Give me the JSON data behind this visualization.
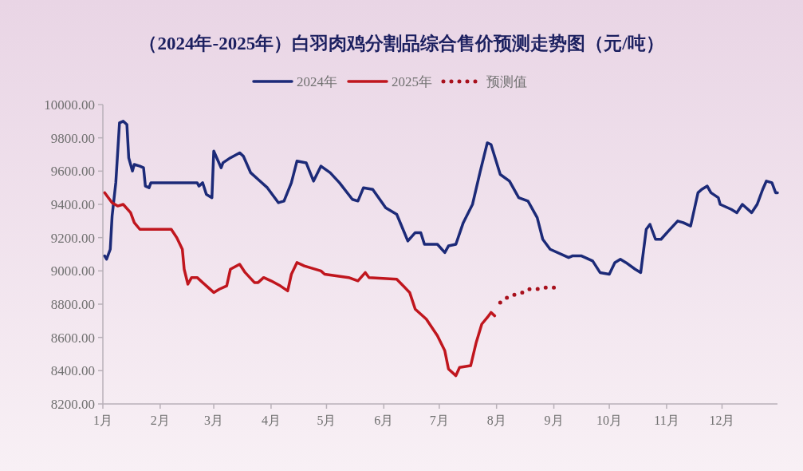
{
  "chart_data": {
    "type": "line",
    "title": "（2024年-2025年）白羽肉鸡分割品综合售价预测走势图（元/吨）",
    "legend": "top",
    "xlim": [
      "--01-01",
      "--12-31"
    ],
    "xticks": [
      {
        "value": "--01-01",
        "label": "1月"
      },
      {
        "value": "--02-01",
        "label": "2月"
      },
      {
        "value": "--03-01",
        "label": "3月"
      },
      {
        "value": "--04-01",
        "label": "4月"
      },
      {
        "value": "--05-01",
        "label": "5月"
      },
      {
        "value": "--06-01",
        "label": "6月"
      },
      {
        "value": "--07-01",
        "label": "7月"
      },
      {
        "value": "--08-01",
        "label": "8月"
      },
      {
        "value": "--09-01",
        "label": "9月"
      },
      {
        "value": "--10-01",
        "label": "10月"
      },
      {
        "value": "--11-01",
        "label": "11月"
      },
      {
        "value": "--12-01",
        "label": "12月"
      }
    ],
    "ylim": [
      8200,
      10000
    ],
    "yticks": [
      {
        "value": 8200,
        "label": "8200.00"
      },
      {
        "value": 8400,
        "label": "8400.00"
      },
      {
        "value": 8600,
        "label": "8600.00"
      },
      {
        "value": 8800,
        "label": "8800.00"
      },
      {
        "value": 9000,
        "label": "9000.00"
      },
      {
        "value": 9200,
        "label": "9200.00"
      },
      {
        "value": 9400,
        "label": "9400.00"
      },
      {
        "value": 9600,
        "label": "9600.00"
      },
      {
        "value": 9800,
        "label": "9800.00"
      },
      {
        "value": 10000,
        "label": "10000.00"
      }
    ],
    "series": [
      {
        "name": "2024年",
        "type": "line",
        "line_style": "solid",
        "color": "#1c2a78",
        "x": [
          "--01-02",
          "--01-03",
          "--01-05",
          "--01-06",
          "--01-08",
          "--01-10",
          "--01-12",
          "--01-14",
          "--01-15",
          "--01-17",
          "--01-18",
          "--01-21",
          "--01-23",
          "--01-24",
          "--01-26",
          "--01-27",
          "--02-21",
          "--02-22",
          "--02-24",
          "--02-26",
          "--02-29",
          "--03-01",
          "--03-05",
          "--03-06",
          "--03-10",
          "--03-15",
          "--03-17",
          "--03-21",
          "--03-25",
          "--03-30",
          "--04-05",
          "--04-08",
          "--04-12",
          "--04-15",
          "--04-20",
          "--04-24",
          "--04-28",
          "--05-03",
          "--05-08",
          "--05-15",
          "--05-18",
          "--05-21",
          "--05-26",
          "--06-02",
          "--06-08",
          "--06-14",
          "--06-18",
          "--06-21",
          "--06-23",
          "--06-30",
          "--07-04",
          "--07-06",
          "--07-10",
          "--07-14",
          "--07-19",
          "--07-23",
          "--07-27",
          "--07-29",
          "--08-03",
          "--08-08",
          "--08-13",
          "--08-18",
          "--08-23",
          "--08-26",
          "--08-30",
          "--09-09",
          "--09-11",
          "--09-16",
          "--09-22",
          "--09-26",
          "--10-01",
          "--10-04",
          "--10-07",
          "--10-10",
          "--10-15",
          "--10-18",
          "--10-21",
          "--10-23",
          "--10-26",
          "--10-29",
          "--11-02",
          "--11-07",
          "--11-10",
          "--11-14",
          "--11-18",
          "--11-20",
          "--11-23",
          "--11-25",
          "--11-29",
          "--11-30",
          "--12-06",
          "--12-09",
          "--12-12",
          "--12-17",
          "--12-20",
          "--12-23",
          "--12-25",
          "--12-28",
          "--12-30",
          "--12-31"
        ],
        "values": [
          9090,
          9070,
          9130,
          9330,
          9530,
          9890,
          9900,
          9880,
          9680,
          9600,
          9640,
          9630,
          9620,
          9510,
          9500,
          9530,
          9530,
          9510,
          9530,
          9460,
          9440,
          9720,
          9620,
          9650,
          9680,
          9710,
          9690,
          9590,
          9550,
          9500,
          9410,
          9420,
          9530,
          9660,
          9650,
          9540,
          9630,
          9590,
          9530,
          9430,
          9420,
          9500,
          9490,
          9380,
          9340,
          9180,
          9230,
          9230,
          9160,
          9160,
          9110,
          9150,
          9160,
          9290,
          9400,
          9590,
          9770,
          9760,
          9580,
          9540,
          9440,
          9420,
          9320,
          9190,
          9130,
          9080,
          9090,
          9090,
          9060,
          8990,
          8980,
          9050,
          9070,
          9050,
          9010,
          8990,
          9250,
          9280,
          9190,
          9190,
          9240,
          9300,
          9290,
          9270,
          9470,
          9490,
          9510,
          9470,
          9440,
          9400,
          9370,
          9350,
          9400,
          9350,
          9400,
          9490,
          9540,
          9530,
          9470,
          9470
        ]
      },
      {
        "name": "2025年",
        "type": "line",
        "line_style": "solid",
        "color": "#c0161e",
        "x": [
          "--01-02",
          "--01-06",
          "--01-09",
          "--01-12",
          "--01-16",
          "--01-18",
          "--01-21",
          "--02-07",
          "--02-10",
          "--02-13",
          "--02-14",
          "--02-16",
          "--02-18",
          "--02-21",
          "--02-26",
          "--03-01",
          "--03-04",
          "--03-08",
          "--03-10",
          "--03-15",
          "--03-18",
          "--03-23",
          "--03-25",
          "--03-28",
          "--04-01",
          "--04-06",
          "--04-10",
          "--04-12",
          "--04-15",
          "--04-19",
          "--04-28",
          "--04-30",
          "--05-13",
          "--05-18",
          "--05-22",
          "--05-24",
          "--06-08",
          "--06-15",
          "--06-18",
          "--06-24",
          "--06-30",
          "--07-04",
          "--07-06",
          "--07-10",
          "--07-12",
          "--07-18",
          "--07-21",
          "--07-24",
          "--07-27",
          "--07-29",
          "--07-31"
        ],
        "values": [
          9470,
          9410,
          9390,
          9400,
          9350,
          9290,
          9250,
          9250,
          9200,
          9130,
          9010,
          8920,
          8960,
          8960,
          8910,
          8870,
          8890,
          8910,
          9010,
          9040,
          8990,
          8930,
          8930,
          8960,
          8940,
          8910,
          8880,
          8980,
          9050,
          9030,
          9000,
          8980,
          8960,
          8940,
          8990,
          8960,
          8950,
          8870,
          8770,
          8710,
          8610,
          8520,
          8410,
          8370,
          8420,
          8430,
          8570,
          8680,
          8720,
          8750,
          8730
        ]
      },
      {
        "name": "预测值",
        "type": "line",
        "line_style": "dotted",
        "color": "#a8101c",
        "x": [
          "--08-03",
          "--08-08",
          "--08-12",
          "--08-15",
          "--08-18",
          "--08-23",
          "--08-27",
          "--09-01"
        ],
        "values": [
          8810,
          8850,
          8860,
          8870,
          8890,
          8890,
          8900,
          8900
        ]
      }
    ]
  }
}
